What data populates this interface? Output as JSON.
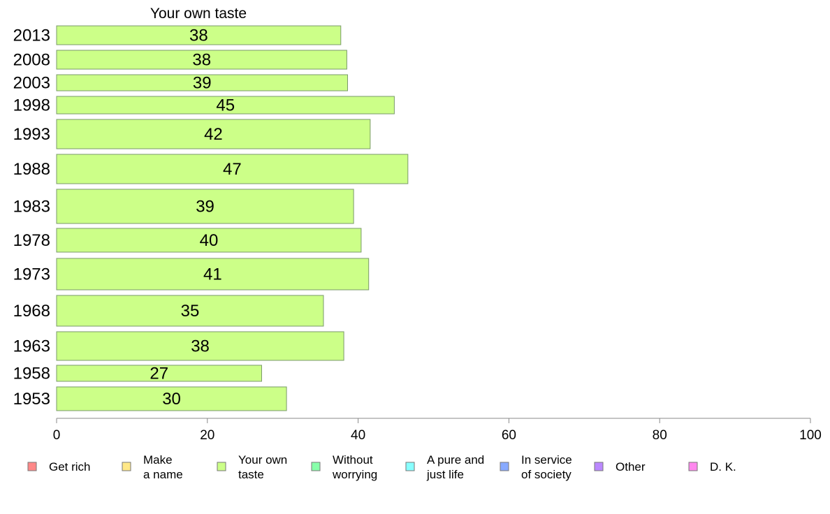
{
  "chart_data": {
    "type": "bar",
    "orientation": "horizontal",
    "title": "Your own taste",
    "xlabel": "",
    "ylabel": "",
    "xlim": [
      0,
      100
    ],
    "xticks": [
      0,
      20,
      40,
      60,
      80,
      100
    ],
    "grid": false,
    "categories": [
      "2013",
      "2008",
      "2003",
      "1998",
      "1993",
      "1988",
      "1983",
      "1978",
      "1973",
      "1968",
      "1963",
      "1958",
      "1953"
    ],
    "series": [
      {
        "name": "Your own taste",
        "color": "#ccff88",
        "values": [
          37.7,
          38.5,
          38.6,
          44.8,
          41.6,
          46.6,
          39.4,
          40.4,
          41.4,
          35.4,
          38.1,
          27.2,
          30.5
        ],
        "data_labels": [
          "38",
          "38",
          "39",
          "45",
          "42",
          "47",
          "39",
          "40",
          "41",
          "35",
          "38",
          "27",
          "30"
        ]
      }
    ],
    "legend": {
      "placement": "bottom",
      "items": [
        {
          "label": "Get rich",
          "color": "#ff8888"
        },
        {
          "label": "Make\na name",
          "color": "#ffe888"
        },
        {
          "label": "Your own\ntaste",
          "color": "#ccff88"
        },
        {
          "label": "Without\nworrying",
          "color": "#88ffaa"
        },
        {
          "label": "A pure and\njust life",
          "color": "#88ffff"
        },
        {
          "label": "In service\nof society",
          "color": "#88aaff"
        },
        {
          "label": "Other",
          "color": "#bb88ff"
        },
        {
          "label": "D. K.",
          "color": "#ff88ee"
        }
      ]
    }
  }
}
